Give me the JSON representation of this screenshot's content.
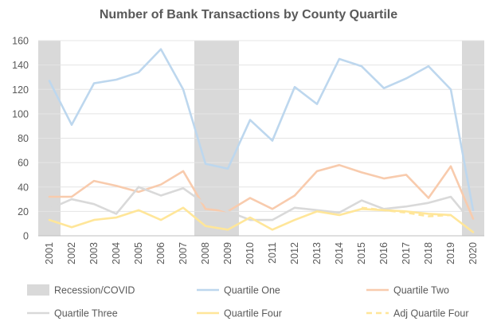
{
  "chart_data": {
    "type": "line",
    "title": "Number of Bank Transactions by County Quartile",
    "xlabel": "",
    "ylabel": "",
    "ylim": [
      0,
      160
    ],
    "yticks": [
      0,
      20,
      40,
      60,
      80,
      100,
      120,
      140,
      160
    ],
    "grid": true,
    "legend_position": "bottom",
    "categories": [
      "2001",
      "2002",
      "2003",
      "2004",
      "2005",
      "2006",
      "2007",
      "2008",
      "2009",
      "2010",
      "2011",
      "2012",
      "2013",
      "2014",
      "2015",
      "2016",
      "2017",
      "2018",
      "2019",
      "2020"
    ],
    "shaded_periods": {
      "name": "Recession/COVID",
      "color": "#d9d9d9",
      "ranges": [
        [
          "2001",
          "2001"
        ],
        [
          "2008",
          "2009"
        ],
        [
          "2020",
          "2020"
        ]
      ]
    },
    "series": [
      {
        "name": "Quartile One",
        "color": "#bdd7ee",
        "dash": false,
        "values": [
          127,
          91,
          125,
          128,
          134,
          153,
          120,
          59,
          55,
          95,
          78,
          122,
          108,
          145,
          139,
          121,
          129,
          139,
          120,
          21
        ]
      },
      {
        "name": "Quartile Two",
        "color": "#f8cbad",
        "dash": false,
        "values": [
          32,
          32,
          45,
          41,
          36,
          42,
          53,
          22,
          20,
          31,
          22,
          33,
          53,
          58,
          52,
          47,
          50,
          31,
          57,
          14
        ]
      },
      {
        "name": "Quartile Three",
        "color": "#d9d9d9",
        "dash": false,
        "values": [
          22,
          30,
          26,
          18,
          40,
          33,
          39,
          26,
          20,
          13,
          13,
          23,
          21,
          19,
          29,
          22,
          24,
          27,
          32,
          10
        ]
      },
      {
        "name": "Quartile Four",
        "color": "#ffe699",
        "dash": false,
        "values": [
          13,
          7,
          13,
          15,
          21,
          13,
          23,
          8,
          5,
          15,
          5,
          13,
          20,
          17,
          22,
          21,
          20,
          18,
          17,
          3
        ]
      },
      {
        "name": "Adj Quartile Four",
        "color": "#ffe699",
        "dash": true,
        "values": [
          null,
          null,
          null,
          null,
          null,
          null,
          null,
          null,
          null,
          16,
          null,
          null,
          null,
          null,
          23,
          21,
          19,
          16,
          17,
          null
        ]
      }
    ]
  }
}
